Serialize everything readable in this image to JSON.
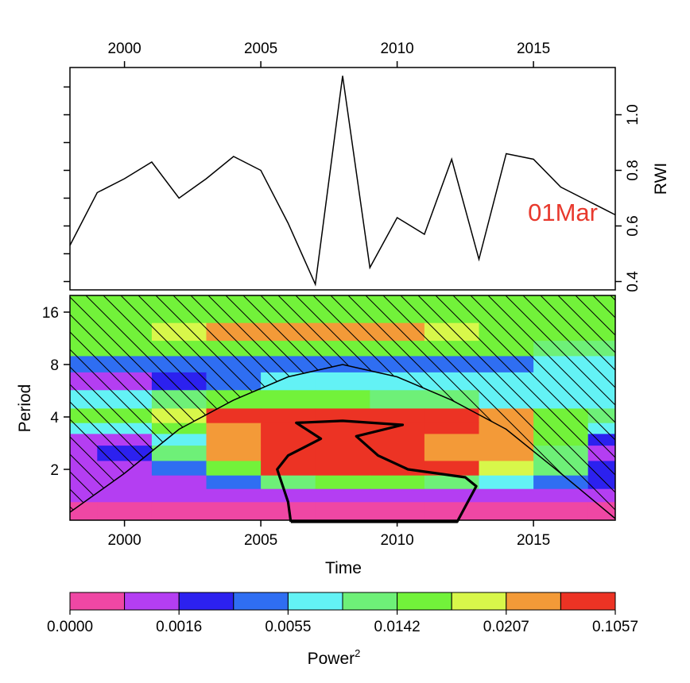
{
  "chart_data": [
    {
      "type": "line",
      "panel": "top",
      "ylabel": "RWI",
      "annotation": "01Mar",
      "annotation_color": "#e8392d",
      "xlim": [
        1998,
        2018
      ],
      "ylim": [
        0.37,
        1.17
      ],
      "x_ticks_top": [
        2000,
        2005,
        2010,
        2015
      ],
      "y_ticks": [
        0.4,
        0.6,
        0.8,
        1.0
      ],
      "y_ticks_labeled_right": [
        "0.4",
        "0.6",
        "0.8",
        "1.0"
      ],
      "x": [
        1998,
        1999,
        2000,
        2001,
        2002,
        2003,
        2004,
        2005,
        2006,
        2007,
        2008,
        2009,
        2010,
        2011,
        2012,
        2013,
        2014,
        2015,
        2016,
        2017,
        2018
      ],
      "values": [
        0.53,
        0.72,
        0.77,
        0.83,
        0.7,
        0.77,
        0.85,
        0.8,
        0.61,
        0.39,
        1.14,
        0.45,
        0.63,
        0.57,
        0.84,
        0.48,
        0.86,
        0.84,
        0.74,
        0.69,
        0.64
      ]
    },
    {
      "type": "heatmap",
      "panel": "bottom",
      "xlabel": "Time",
      "ylabel": "Period",
      "xlim": [
        1998,
        2018
      ],
      "x_ticks": [
        2000,
        2005,
        2010,
        2015
      ],
      "y_scale": "log2",
      "y_ticks": [
        2,
        4,
        8,
        16
      ],
      "legend_title": "Power",
      "legend_superscript": "2",
      "legend_labels": [
        "0.0000",
        "0.0016",
        "0.0055",
        "0.0142",
        "0.0207",
        "0.1057"
      ],
      "legend_colors": [
        "#ef47a4",
        "#b43ef2",
        "#2c21ef",
        "#2f6ef2",
        "#63f2f5",
        "#6ef078",
        "#72f23a",
        "#d8f74a",
        "#f39a38",
        "#ec3324"
      ],
      "period_rows": [
        16,
        12,
        10,
        8,
        6.5,
        5,
        4,
        3.4,
        3,
        2.5,
        2,
        1.7,
        1.4,
        1.2,
        1.0
      ],
      "time_cols": [
        1998,
        2000,
        2002,
        2004,
        2006,
        2008,
        2010,
        2012,
        2014,
        2016,
        2018
      ],
      "level_grid": [
        [
          6,
          6,
          6,
          6,
          6,
          6,
          6,
          6,
          6,
          6,
          6
        ],
        [
          6,
          6,
          7,
          8,
          8,
          8,
          8,
          7,
          6,
          6,
          6
        ],
        [
          6,
          6,
          6,
          6,
          6,
          6,
          6,
          6,
          6,
          5,
          5
        ],
        [
          3,
          3,
          3,
          3,
          3,
          3,
          3,
          3,
          3,
          4,
          4
        ],
        [
          1,
          1,
          2,
          3,
          4,
          4,
          4,
          4,
          4,
          4,
          4
        ],
        [
          4,
          4,
          5,
          6,
          6,
          6,
          5,
          5,
          4,
          4,
          4
        ],
        [
          6,
          6,
          7,
          9,
          9,
          9,
          9,
          9,
          8,
          6,
          5
        ],
        [
          4,
          4,
          6,
          8,
          9,
          9,
          9,
          9,
          8,
          6,
          4
        ],
        [
          1,
          1,
          4,
          8,
          9,
          9,
          9,
          8,
          8,
          6,
          2
        ],
        [
          1,
          2,
          5,
          8,
          9,
          9,
          9,
          8,
          8,
          5,
          1
        ],
        [
          1,
          1,
          3,
          6,
          9,
          9,
          9,
          9,
          7,
          5,
          2
        ],
        [
          1,
          1,
          1,
          3,
          5,
          6,
          6,
          5,
          4,
          3,
          2
        ],
        [
          1,
          1,
          1,
          1,
          1,
          1,
          1,
          1,
          1,
          1,
          1
        ],
        [
          0,
          0,
          0,
          0,
          0,
          0,
          0,
          0,
          0,
          0,
          0
        ],
        [
          0,
          0,
          0,
          0,
          0,
          0,
          0,
          0,
          0,
          0,
          0
        ]
      ],
      "cone_of_influence_apex": [
        2008,
        8
      ],
      "significance_contour": [
        [
          2006.1,
          1.0
        ],
        [
          2006.0,
          1.3
        ],
        [
          2005.6,
          2.0
        ],
        [
          2006.0,
          2.4
        ],
        [
          2007.2,
          3.0
        ],
        [
          2006.3,
          3.7
        ],
        [
          2008.0,
          3.8
        ],
        [
          2010.2,
          3.6
        ],
        [
          2008.5,
          3.1
        ],
        [
          2009.3,
          2.4
        ],
        [
          2010.4,
          2.0
        ],
        [
          2012.5,
          1.8
        ],
        [
          2012.9,
          1.6
        ],
        [
          2012.2,
          1.0
        ],
        [
          2006.1,
          1.0
        ]
      ]
    }
  ]
}
